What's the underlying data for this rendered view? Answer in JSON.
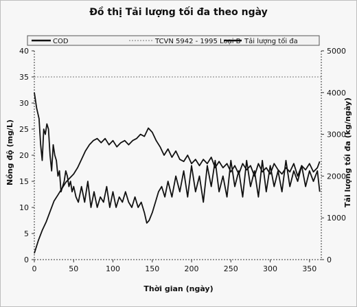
{
  "chart_data": {
    "type": "line",
    "title": "Đồ thị Tải lượng tối đa theo ngày",
    "xlabel": "Thời gian (ngày)",
    "ylabel_left": "Nồng độ (mg/L)",
    "ylabel_right": "Tải lượng tối đa (kg/ngày)",
    "xlim": [
      0,
      365
    ],
    "ylim_left": [
      0,
      40
    ],
    "ylim_right": [
      0,
      5000
    ],
    "xticks": [
      0,
      50,
      100,
      150,
      200,
      250,
      300,
      350
    ],
    "yticks_left": [
      0,
      5,
      10,
      15,
      20,
      25,
      30,
      35,
      40
    ],
    "yticks_right": [
      0,
      1000,
      2000,
      3000,
      4000,
      5000
    ],
    "grid": false,
    "legend_position": "top",
    "series": [
      {
        "name": "COD",
        "axis": "left",
        "x": [
          0,
          3,
          6,
          8,
          10,
          12,
          14,
          16,
          18,
          20,
          22,
          24,
          26,
          28,
          30,
          32,
          34,
          36,
          38,
          40,
          42,
          44,
          46,
          48,
          50,
          53,
          56,
          60,
          64,
          68,
          72,
          76,
          80,
          84,
          88,
          92,
          96,
          100,
          104,
          108,
          112,
          116,
          120,
          124,
          128,
          132,
          136,
          140,
          143,
          146,
          150,
          154,
          158,
          162,
          166,
          170,
          175,
          180,
          185,
          190,
          195,
          200,
          205,
          210,
          215,
          220,
          225,
          230,
          235,
          240,
          245,
          250,
          255,
          260,
          265,
          270,
          275,
          280,
          285,
          290,
          295,
          300,
          305,
          310,
          315,
          320,
          325,
          330,
          335,
          340,
          345,
          350,
          355,
          360,
          363
        ],
        "values": [
          32,
          29,
          27,
          22,
          19,
          25,
          24,
          26,
          25,
          20,
          17,
          22,
          20,
          19,
          16,
          17,
          13,
          14,
          15,
          17,
          16,
          14,
          15,
          13,
          14,
          12,
          11,
          14,
          11,
          15,
          10,
          13,
          10,
          12,
          11,
          14,
          10,
          13,
          10,
          12,
          11,
          13,
          11,
          10,
          12,
          10,
          11,
          9,
          7,
          7.5,
          9,
          11,
          13,
          14,
          12,
          15,
          12,
          16,
          13,
          17,
          12,
          18,
          13,
          16,
          11,
          18,
          14,
          19,
          13,
          16,
          12,
          19,
          14,
          17,
          12,
          19,
          14,
          17,
          12,
          19,
          13,
          18,
          14,
          17,
          13,
          19,
          14,
          17,
          15,
          18,
          14,
          17,
          15,
          17,
          13
        ]
      },
      {
        "name": "TCVN 5942 - 1995 Loại B",
        "axis": "left",
        "x": [
          0,
          365
        ],
        "values": [
          35,
          35
        ]
      },
      {
        "name": "Tải lượng tối đa",
        "axis": "right",
        "x": [
          0,
          5,
          10,
          15,
          20,
          25,
          30,
          35,
          40,
          45,
          50,
          55,
          60,
          65,
          70,
          75,
          80,
          85,
          90,
          95,
          100,
          105,
          110,
          115,
          120,
          125,
          130,
          135,
          140,
          145,
          150,
          155,
          160,
          165,
          170,
          175,
          180,
          185,
          190,
          195,
          200,
          205,
          210,
          215,
          220,
          225,
          230,
          235,
          240,
          245,
          250,
          255,
          260,
          265,
          270,
          275,
          280,
          285,
          290,
          295,
          300,
          305,
          310,
          315,
          320,
          325,
          330,
          335,
          340,
          345,
          350,
          355,
          360,
          363
        ],
        "values": [
          150,
          450,
          700,
          900,
          1150,
          1400,
          1550,
          1700,
          1850,
          1950,
          2050,
          2200,
          2400,
          2600,
          2750,
          2850,
          2900,
          2800,
          2900,
          2750,
          2850,
          2700,
          2800,
          2850,
          2750,
          2850,
          2900,
          3000,
          2950,
          3150,
          3050,
          2850,
          2700,
          2500,
          2650,
          2450,
          2600,
          2400,
          2350,
          2500,
          2300,
          2400,
          2250,
          2400,
          2300,
          2450,
          2200,
          2350,
          2200,
          2300,
          2100,
          2250,
          2050,
          2300,
          2150,
          2250,
          2000,
          2300,
          2100,
          2200,
          2050,
          2300,
          2150,
          2050,
          2200,
          2100,
          2300,
          2000,
          2250,
          2150,
          2300,
          2100,
          2200,
          2350
        ]
      }
    ]
  }
}
